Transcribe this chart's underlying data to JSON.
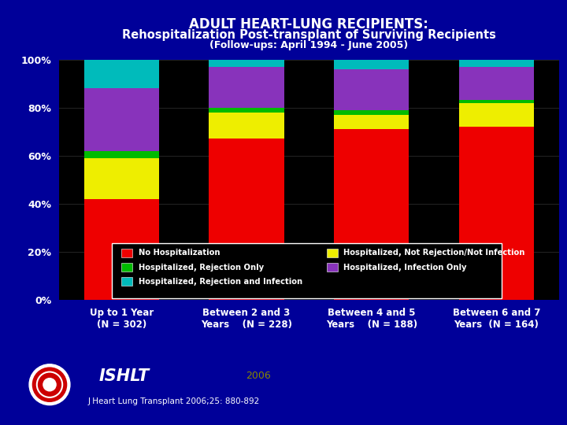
{
  "title_line1": "ADULT HEART-LUNG RECIPIENTS:",
  "title_line2": "Rehospitalization Post-transplant of Surviving Recipients",
  "title_line3": "(Follow-ups: April 1994 - June 2005)",
  "categories": [
    "Up to 1 Year\n(N = 302)",
    "Between 2 and 3\nYears    (N = 228)",
    "Between 4 and 5\nYears    (N = 188)",
    "Between 6 and 7\nYears  (N = 164)"
  ],
  "segments": {
    "No Hospitalization": [
      42,
      67,
      71,
      72
    ],
    "Hospitalized, Not Rejection/Not Infection": [
      17,
      11,
      6,
      10
    ],
    "Hospitalized, Rejection Only": [
      3,
      2,
      2,
      1
    ],
    "Hospitalized, Infection Only": [
      26,
      17,
      17,
      14
    ],
    "Hospitalized, Rejection and Infection": [
      12,
      3,
      4,
      3
    ]
  },
  "colors": {
    "No Hospitalization": "#EE0000",
    "Hospitalized, Not Rejection/Not Infection": "#EEEE00",
    "Hospitalized, Rejection Only": "#00BB00",
    "Hospitalized, Infection Only": "#8833BB",
    "Hospitalized, Rejection and Infection": "#00BBBB"
  },
  "background_color": "#000099",
  "plot_bg_color": "#000000",
  "text_color": "#FFFFFF",
  "yticks": [
    0,
    20,
    40,
    60,
    80,
    100
  ],
  "ytick_labels": [
    "0%",
    "20%",
    "40%",
    "60%",
    "80%",
    "100%"
  ],
  "footer_text": "J Heart Lung Transplant 2006;25: 880-892",
  "year_text": "2006",
  "ishlt_text": "ISHLT"
}
